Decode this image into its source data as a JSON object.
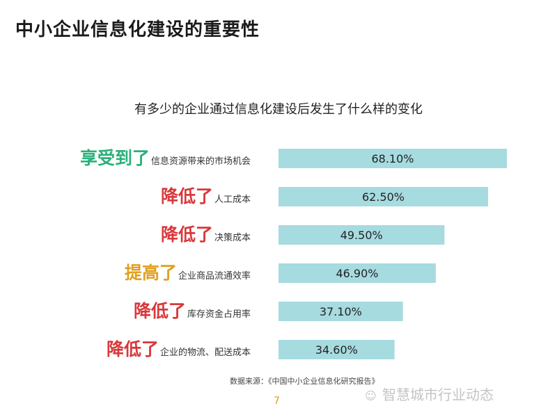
{
  "page": {
    "title": "中小企业信息化建设的重要性",
    "source_note": "数据来源：《中国中小企业信息化研究报告》",
    "page_number": "7",
    "watermark": "智慧城市行业动态",
    "watermark_icon": "wechat-icon"
  },
  "colors": {
    "bar": "#a6dbe0",
    "verb_green": "#2ab07a",
    "verb_red": "#d9383a",
    "verb_orange": "#e0a020",
    "value_text": "#222222"
  },
  "chart_data": {
    "type": "bar",
    "orientation": "horizontal",
    "title": "有多少的企业通过信息化建设后发生了什么样的变化",
    "categories": [
      "享受到了信息资源带来的市场机会",
      "降低了人工成本",
      "降低了决策成本",
      "提高了企业商品流通效率",
      "降低了库存资金占用率",
      "降低了企业的物流、配送成本"
    ],
    "rows": [
      {
        "verb": "享受到了",
        "desc": "信息资源带来的市场机会",
        "verb_color": "green",
        "value": 68.1,
        "value_label": "68.10%"
      },
      {
        "verb": "降低了",
        "desc": "人工成本",
        "verb_color": "red",
        "value": 62.5,
        "value_label": "62.50%"
      },
      {
        "verb": "降低了",
        "desc": "决策成本",
        "verb_color": "red",
        "value": 49.5,
        "value_label": "49.50%"
      },
      {
        "verb": "提高了",
        "desc": "企业商品流通效率",
        "verb_color": "orange",
        "value": 46.9,
        "value_label": "46.90%"
      },
      {
        "verb": "降低了",
        "desc": "库存资金占用率",
        "verb_color": "red",
        "value": 37.1,
        "value_label": "37.10%"
      },
      {
        "verb": "降低了",
        "desc": "企业的物流、配送成本",
        "verb_color": "red",
        "value": 34.6,
        "value_label": "34.60%"
      }
    ],
    "xlim": [
      0,
      68.1
    ],
    "grid": false,
    "legend": "none"
  }
}
